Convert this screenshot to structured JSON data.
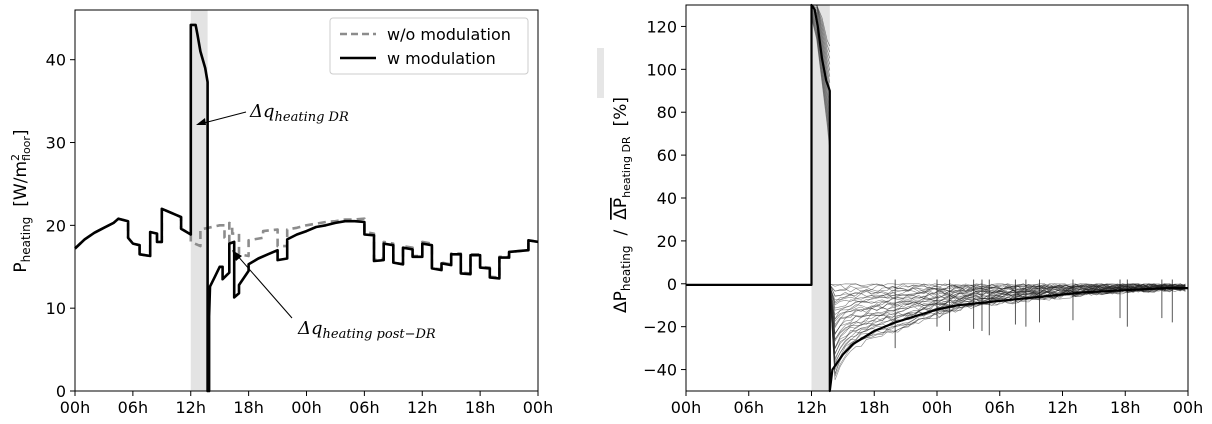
{
  "chart_data": [
    {
      "type": "line",
      "x_tick_labels": [
        "00h",
        "06h",
        "12h",
        "18h",
        "00h",
        "06h",
        "12h",
        "18h",
        "00h"
      ],
      "x_ticks_hours": [
        0,
        6,
        12,
        18,
        24,
        30,
        36,
        42,
        48
      ],
      "xlim": [
        0,
        48
      ],
      "ylim": [
        0,
        46
      ],
      "y_ticks": [
        0,
        10,
        20,
        30,
        40
      ],
      "ylabel": {
        "base": "P",
        "sub": "heating",
        "unit_prefix": "[W/m",
        "unit_sup": "2",
        "unit_sub": "floor",
        "unit_suffix": "]"
      },
      "dr_window_hours": [
        12,
        13.75
      ],
      "legend": {
        "position": "top-right",
        "entries": [
          "w/o modulation",
          "w modulation"
        ]
      },
      "annotations": [
        {
          "base": "Δq",
          "sub": "heating DR"
        },
        {
          "base": "Δq",
          "sub": "heating post−DR"
        }
      ],
      "series": [
        {
          "name": "w/o modulation",
          "style": "dashed",
          "color": "#8c8c8c",
          "points": [
            [
              0,
              17.2
            ],
            [
              1,
              18.3
            ],
            [
              2,
              19.1
            ],
            [
              3,
              19.7
            ],
            [
              4,
              20.3
            ],
            [
              4.5,
              20.8
            ],
            [
              5.5,
              20.5
            ],
            [
              5.5,
              18.5
            ],
            [
              6,
              17.8
            ],
            [
              6.7,
              17.6
            ],
            [
              6.7,
              16.5
            ],
            [
              7.8,
              16.3
            ],
            [
              7.8,
              19.2
            ],
            [
              8.5,
              19.0
            ],
            [
              8.5,
              18.0
            ],
            [
              9,
              18.0
            ],
            [
              9,
              22
            ],
            [
              10,
              21.5
            ],
            [
              11,
              21
            ],
            [
              11,
              19.6
            ],
            [
              12,
              18.9
            ],
            [
              12,
              18
            ],
            [
              13,
              17.5
            ],
            [
              13,
              19.5
            ],
            [
              15,
              20
            ],
            [
              15.5,
              20
            ],
            [
              15.5,
              18.5
            ],
            [
              16,
              18
            ],
            [
              16,
              20.3
            ],
            [
              16.3,
              20
            ],
            [
              16.3,
              19
            ],
            [
              17,
              19
            ],
            [
              17,
              16.5
            ],
            [
              18,
              16.3
            ],
            [
              18,
              18.2
            ],
            [
              19.5,
              18.5
            ],
            [
              19.5,
              19.3
            ],
            [
              21,
              19.5
            ],
            [
              21,
              17.5
            ],
            [
              22,
              17.5
            ],
            [
              22,
              19.5
            ],
            [
              23,
              19.7
            ],
            [
              24,
              20.0
            ],
            [
              25,
              20.2
            ],
            [
              26,
              20.4
            ],
            [
              27,
              20.5
            ],
            [
              28,
              20.7
            ],
            [
              29,
              20.7
            ],
            [
              30,
              20.8
            ],
            [
              30,
              19.2
            ],
            [
              31,
              19.0
            ],
            [
              31,
              15.8
            ],
            [
              32,
              16
            ],
            [
              32,
              18
            ],
            [
              33,
              17.8
            ],
            [
              33,
              15.5
            ],
            [
              34,
              15.3
            ],
            [
              34,
              17.5
            ],
            [
              35,
              17.3
            ],
            [
              35,
              16.3
            ],
            [
              36,
              16.3
            ],
            [
              36,
              18
            ],
            [
              37,
              17.8
            ],
            [
              37,
              14.8
            ],
            [
              38,
              14.7
            ],
            [
              38,
              15.5
            ],
            [
              39,
              15.3
            ],
            [
              39,
              16.6
            ],
            [
              40,
              16.6
            ],
            [
              40,
              14.3
            ],
            [
              41,
              14.2
            ],
            [
              41,
              16.5
            ],
            [
              42,
              16.5
            ],
            [
              42,
              15.0
            ],
            [
              43,
              14.9
            ],
            [
              43,
              13.8
            ],
            [
              44,
              13.7
            ],
            [
              44,
              16.2
            ],
            [
              45,
              16.2
            ],
            [
              45,
              16.8
            ],
            [
              47,
              17.0
            ],
            [
              47,
              18.2
            ],
            [
              48,
              18
            ]
          ]
        },
        {
          "name": "w modulation",
          "style": "solid",
          "color": "#000000",
          "points": [
            [
              0,
              17.2
            ],
            [
              1,
              18.3
            ],
            [
              2,
              19.1
            ],
            [
              3,
              19.7
            ],
            [
              4,
              20.3
            ],
            [
              4.5,
              20.8
            ],
            [
              5.5,
              20.5
            ],
            [
              5.5,
              18.5
            ],
            [
              6,
              17.8
            ],
            [
              6.7,
              17.6
            ],
            [
              6.7,
              16.5
            ],
            [
              7.8,
              16.3
            ],
            [
              7.8,
              19.2
            ],
            [
              8.5,
              19.0
            ],
            [
              8.5,
              18.0
            ],
            [
              9,
              18.0
            ],
            [
              9,
              22
            ],
            [
              10,
              21.5
            ],
            [
              11,
              21
            ],
            [
              11,
              19.6
            ],
            [
              12,
              18.9
            ],
            [
              12,
              44.2
            ],
            [
              12.5,
              44.2
            ],
            [
              12.7,
              43
            ],
            [
              13,
              41
            ],
            [
              13.5,
              39
            ],
            [
              13.75,
              37.3
            ],
            [
              13.75,
              0
            ],
            [
              13.9,
              0
            ],
            [
              13.9,
              9
            ],
            [
              14,
              12.6
            ],
            [
              14.5,
              13.8
            ],
            [
              15,
              15
            ],
            [
              15.3,
              15
            ],
            [
              15.3,
              13.5
            ],
            [
              16,
              14.3
            ],
            [
              16,
              17.8
            ],
            [
              16.5,
              18
            ],
            [
              16.5,
              11.3
            ],
            [
              17,
              11.8
            ],
            [
              17,
              12.8
            ],
            [
              18,
              14.5
            ],
            [
              18,
              15.3
            ],
            [
              19,
              16
            ],
            [
              20,
              16.5
            ],
            [
              21,
              17
            ],
            [
              21,
              15.8
            ],
            [
              22,
              16
            ],
            [
              22,
              18.3
            ],
            [
              23,
              18.9
            ],
            [
              24,
              19.3
            ],
            [
              25,
              19.8
            ],
            [
              26,
              20
            ],
            [
              27,
              20.3
            ],
            [
              28,
              20.5
            ],
            [
              29,
              20.5
            ],
            [
              30,
              20.4
            ],
            [
              30,
              18.9
            ],
            [
              31,
              18.8
            ],
            [
              31,
              15.7
            ],
            [
              32,
              15.8
            ],
            [
              32,
              17.8
            ],
            [
              33,
              17.6
            ],
            [
              33,
              15.5
            ],
            [
              34,
              15.3
            ],
            [
              34,
              17.3
            ],
            [
              35,
              17.1
            ],
            [
              35,
              16.2
            ],
            [
              36,
              16.2
            ],
            [
              36,
              17.8
            ],
            [
              37,
              17.6
            ],
            [
              37,
              14.8
            ],
            [
              38,
              14.6
            ],
            [
              38,
              15.4
            ],
            [
              39,
              15.2
            ],
            [
              39,
              16.5
            ],
            [
              40,
              16.5
            ],
            [
              40,
              14.2
            ],
            [
              41,
              14.1
            ],
            [
              41,
              16.4
            ],
            [
              42,
              16.4
            ],
            [
              42,
              14.9
            ],
            [
              43,
              14.8
            ],
            [
              43,
              13.7
            ],
            [
              44,
              13.6
            ],
            [
              44,
              16.1
            ],
            [
              45,
              16.1
            ],
            [
              45,
              16.8
            ],
            [
              47,
              17.0
            ],
            [
              47,
              18.2
            ],
            [
              48,
              18
            ]
          ]
        }
      ]
    },
    {
      "type": "line",
      "x_tick_labels": [
        "00h",
        "06h",
        "12h",
        "18h",
        "00h",
        "06h",
        "12h",
        "18h",
        "00h"
      ],
      "x_ticks_hours": [
        0,
        6,
        12,
        18,
        24,
        30,
        36,
        42,
        48
      ],
      "xlim": [
        0,
        48
      ],
      "ylim": [
        -50,
        130
      ],
      "y_ticks": [
        -40,
        -20,
        0,
        20,
        40,
        60,
        80,
        100,
        120
      ],
      "ylabel": {
        "num_base": "ΔP",
        "num_sub": "heating",
        "separator": "/",
        "den_base": "ΔP",
        "den_sub": "heating DR",
        "unit": "[%]"
      },
      "dr_window_hours": [
        12,
        13.75
      ],
      "ensemble_description": "many overlapping building curves",
      "envelope": {
        "recovery_lower": [
          [
            14,
            -50
          ],
          [
            14.5,
            -40
          ],
          [
            15,
            -35
          ],
          [
            16,
            -30
          ],
          [
            18,
            -25
          ],
          [
            20,
            -22
          ],
          [
            22,
            -18
          ],
          [
            24,
            -15
          ],
          [
            26,
            -12
          ],
          [
            28,
            -10
          ],
          [
            32,
            -8
          ],
          [
            36,
            -6
          ],
          [
            40,
            -4
          ],
          [
            44,
            -3
          ],
          [
            48,
            -2.5
          ]
        ],
        "recovery_upper": [
          [
            14,
            -1
          ],
          [
            48,
            0
          ]
        ],
        "dr_band": [
          [
            12,
            130
          ],
          [
            12.5,
            125
          ],
          [
            13,
            110
          ],
          [
            13.5,
            95
          ],
          [
            13.75,
            88
          ]
        ]
      },
      "series": [
        {
          "name": "",
          "style": "solid",
          "color": "#000000",
          "points": [
            [
              0,
              -0.5
            ],
            [
              12,
              -0.5
            ],
            [
              12,
              130
            ],
            [
              12.3,
              128
            ],
            [
              12.6,
              120
            ],
            [
              13,
              105
            ],
            [
              13.4,
              95
            ],
            [
              13.75,
              90
            ],
            [
              13.75,
              -50
            ],
            [
              14,
              -40
            ],
            [
              15,
              -33
            ],
            [
              16,
              -28
            ],
            [
              18,
              -22
            ],
            [
              20,
              -18
            ],
            [
              22,
              -15
            ],
            [
              24,
              -12
            ],
            [
              26,
              -10
            ],
            [
              28,
              -9
            ],
            [
              30,
              -8
            ],
            [
              32,
              -7
            ],
            [
              34,
              -6
            ],
            [
              36,
              -5
            ],
            [
              38,
              -4
            ],
            [
              40,
              -3.5
            ],
            [
              42,
              -3
            ],
            [
              44,
              -2.5
            ],
            [
              46,
              -2
            ],
            [
              48,
              -2
            ]
          ]
        }
      ]
    }
  ]
}
